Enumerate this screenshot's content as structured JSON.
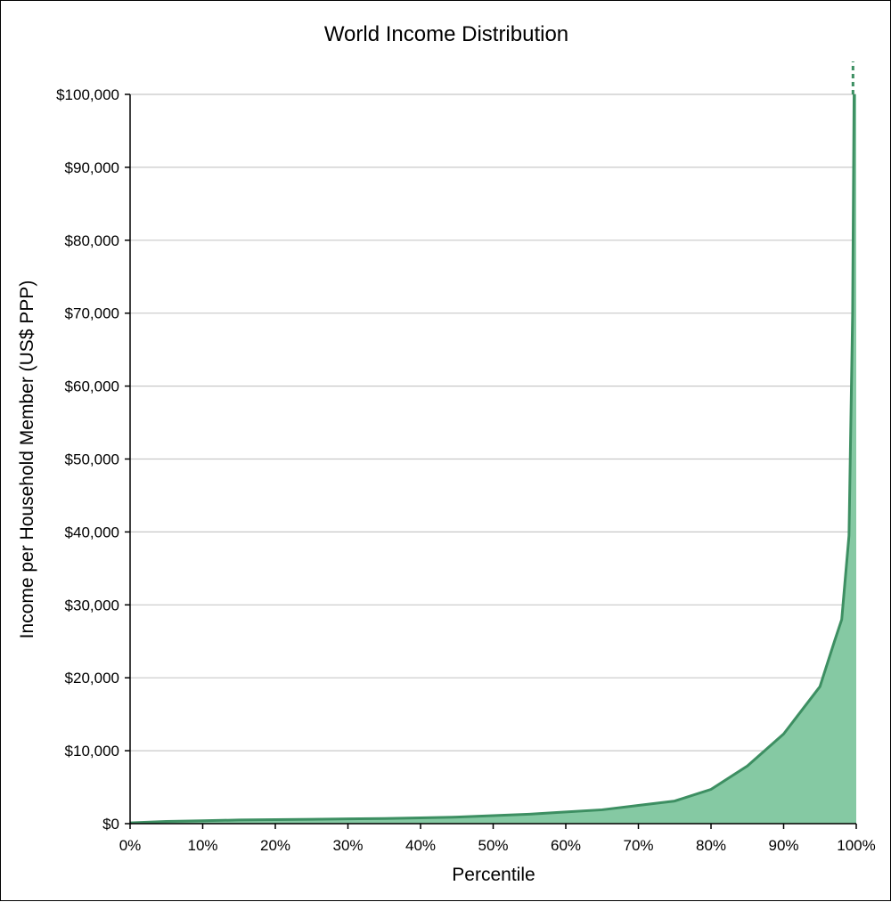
{
  "chart_data": {
    "type": "area",
    "title": "World Income Distribution",
    "xlabel": "Percentile",
    "ylabel": "Income per Household Member  (US$ PPP)",
    "x_unit": "percent",
    "xlim": [
      0,
      100
    ],
    "ylim": [
      0,
      100000
    ],
    "x_ticks": [
      0,
      10,
      20,
      30,
      40,
      50,
      60,
      70,
      80,
      90,
      100
    ],
    "x_tick_labels": [
      "0%",
      "10%",
      "20%",
      "30%",
      "40%",
      "50%",
      "60%",
      "70%",
      "80%",
      "90%",
      "100%"
    ],
    "y_ticks": [
      0,
      10000,
      20000,
      30000,
      40000,
      50000,
      60000,
      70000,
      80000,
      90000,
      100000
    ],
    "y_tick_labels": [
      "$0",
      "$10,000",
      "$20,000",
      "$30,000",
      "$40,000",
      "$50,000",
      "$60,000",
      "$70,000",
      "$80,000",
      "$90,000",
      "$100,000"
    ],
    "grid": "horizontal",
    "legend": "none",
    "series": [
      {
        "x": [
          0,
          5,
          10,
          15,
          20,
          25,
          30,
          35,
          40,
          45,
          50,
          55,
          60,
          65,
          70,
          75,
          80,
          85,
          90,
          95,
          97,
          98,
          99,
          99.5,
          99.7,
          99.9,
          100
        ],
        "y": [
          100,
          300,
          400,
          500,
          550,
          600,
          650,
          700,
          800,
          900,
          1100,
          1300,
          1600,
          1900,
          2500,
          3100,
          4700,
          7900,
          12300,
          18800,
          25000,
          28000,
          39500,
          70000,
          100000,
          100000,
          100000
        ]
      }
    ],
    "annotations": [
      "dashed line extending above $100,000 at 100%"
    ],
    "colors": {
      "line": "#3d8f62",
      "fill": "#85c9a3",
      "grid": "#c8c8c8",
      "axis": "#000000"
    }
  }
}
